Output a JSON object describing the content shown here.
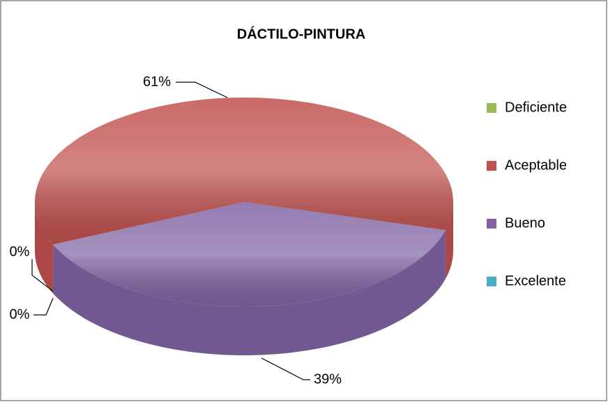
{
  "chart_data": {
    "type": "pie",
    "title": "DÁCTILO-PINTURA",
    "categories": [
      "Deficiente",
      "Aceptable",
      "Bueno",
      "Excelente"
    ],
    "values": [
      0,
      61,
      39,
      0
    ],
    "value_labels": [
      "0%",
      "61%",
      "39%",
      "0%"
    ],
    "colors": [
      "#9bbb59",
      "#c0504d",
      "#8064a2",
      "#4bacc6"
    ],
    "legend": "right"
  }
}
